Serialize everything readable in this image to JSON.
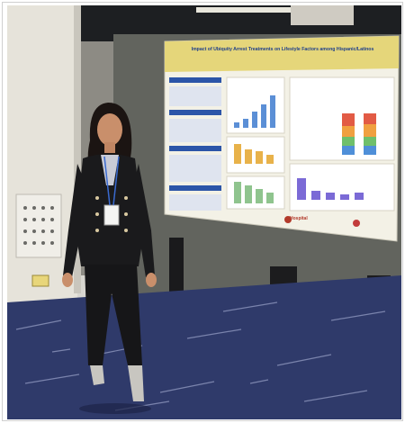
{
  "photo": {
    "description_icon": "conference-poster-photo-icon",
    "poster": {
      "title_line_1": "Impact of Ubiquity Arrest Treatments on Lifestyle Factors among Hispanic/Latinos",
      "title_line_2": "",
      "logo_left": "Hospital",
      "logo_right": ""
    },
    "colors": {
      "ceiling": "#1d1f22",
      "wall": "#d7d5ce",
      "poster_board": "#62645e",
      "poster_paper": "#f3f1e6",
      "poster_header": "#e5d67a",
      "carpet": "#2f3a6a",
      "jacket": "#1a1a1c"
    }
  }
}
